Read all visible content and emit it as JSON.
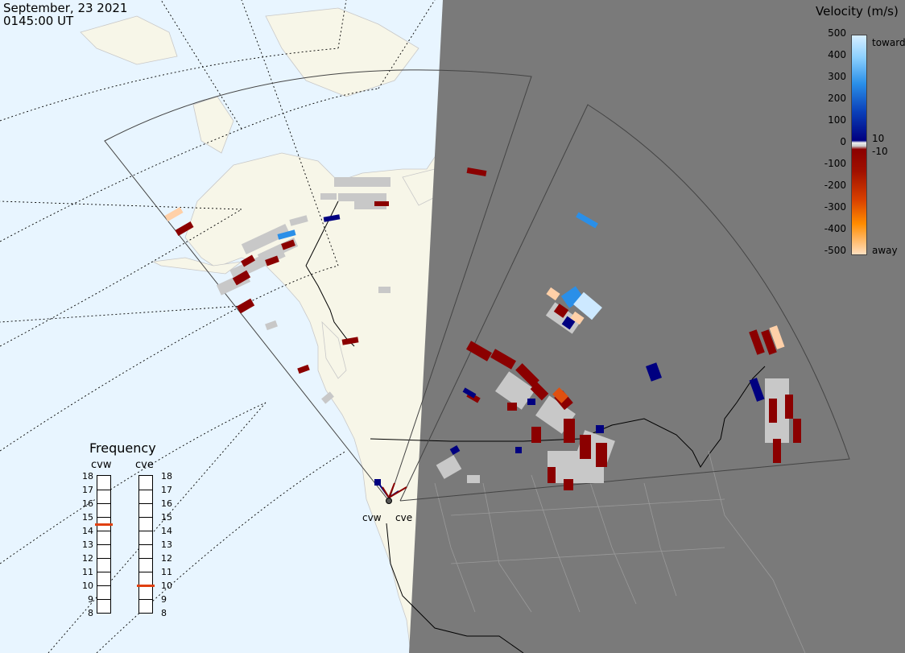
{
  "header": {
    "date": "September, 23 2021",
    "time": "0145:00 UT"
  },
  "velocity_scale": {
    "title": "Velocity (m/s)",
    "ticks": [
      "500",
      "400",
      "300",
      "200",
      "100",
      "0",
      "-100",
      "-200",
      "-300",
      "-400",
      "-500"
    ],
    "side_labels": {
      "toward": "toward",
      "away": "away",
      "pos": "10",
      "neg": "-10"
    },
    "colors": {
      "toward_light": "#cde9ff",
      "toward_mid": "#2a8fe8",
      "toward_dark": "#000080",
      "away_dark": "#8b0000",
      "away_mid": "#e05010",
      "away_light": "#ffd0a8",
      "ground": "#c8c8c8"
    }
  },
  "frequency": {
    "title": "Frequency",
    "radars": [
      {
        "name": "cvw",
        "selected_mhz": 15
      },
      {
        "name": "cve",
        "selected_mhz": 10.5
      }
    ],
    "ticks": [
      "18",
      "17",
      "16",
      "15",
      "14",
      "13",
      "12",
      "11",
      "10",
      "9",
      "8"
    ]
  },
  "sites": [
    {
      "name": "cvw"
    },
    {
      "name": "cve"
    }
  ],
  "colors": {
    "ocean": "#e8f5ff",
    "land": "#f7f6e8",
    "night": "#7a7a7a"
  }
}
